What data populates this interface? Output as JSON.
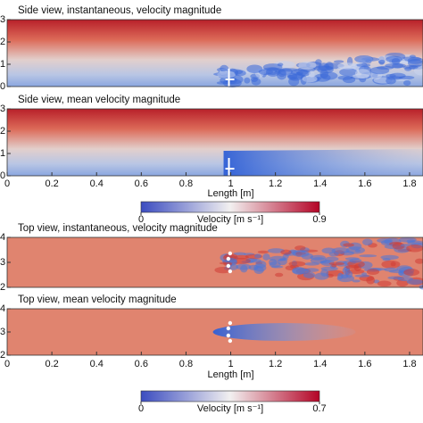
{
  "panels": [
    {
      "title": "Side view, instantaneous, velocity magnitude",
      "ylim": [
        0,
        3
      ],
      "yticks": [
        0,
        1,
        2,
        3
      ]
    },
    {
      "title": "Side view, mean velocity magnitude",
      "ylim": [
        0,
        3
      ],
      "yticks": [
        0,
        1,
        2,
        3
      ]
    },
    {
      "title": "Top view, instantaneous, velocity magnitude",
      "ylim": [
        2,
        4
      ],
      "yticks": [
        2,
        3,
        4
      ]
    },
    {
      "title": "Top view, mean velocity magnitude",
      "ylim": [
        2,
        4
      ],
      "yticks": [
        2,
        3,
        4
      ]
    }
  ],
  "x_axes": [
    {
      "xlim": [
        0,
        1.86
      ],
      "xticks": [
        0,
        0.2,
        0.4,
        0.6,
        0.8,
        1,
        1.2,
        1.4,
        1.6,
        1.8
      ],
      "xlabel": "Length [m]"
    },
    {
      "xlim": [
        0,
        1.86
      ],
      "xticks": [
        0,
        0.2,
        0.4,
        0.6,
        0.8,
        1,
        1.2,
        1.4,
        1.6,
        1.8
      ],
      "xlabel": "Length [m]"
    }
  ],
  "colorbars": [
    {
      "range": [
        0,
        0.9
      ],
      "ticks": [
        0,
        0.9
      ],
      "label": "Velocity [m s⁻¹]"
    },
    {
      "range": [
        0,
        0.7
      ],
      "ticks": [
        0,
        0.7
      ],
      "label": "Velocity [m s⁻¹]"
    }
  ]
}
